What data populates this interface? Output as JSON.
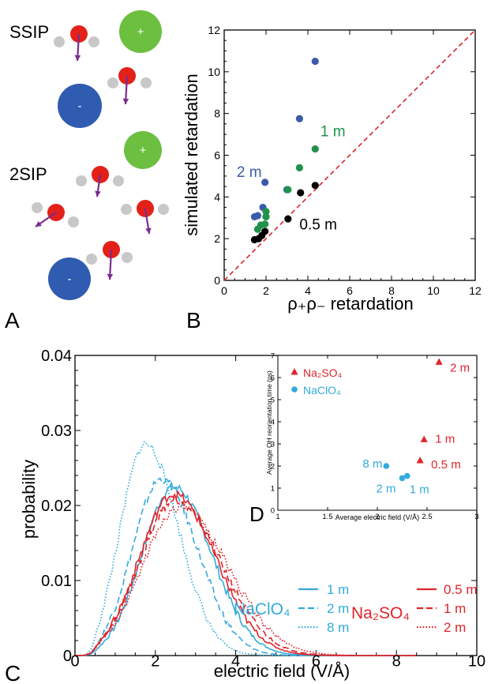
{
  "panels": {
    "A": {
      "letter": "A",
      "labels": {
        "ssip": "SSIP",
        "twosip": "2SIP"
      },
      "cation_sign": "+",
      "anion_sign": "-",
      "colors": {
        "oxygen": "#e32119",
        "hydrogen": "#c8c8c8",
        "cation": "#6cbf3f",
        "anion": "#2f5bb0",
        "dipole": "#7b2b8f",
        "sign": "#ffffff"
      }
    },
    "B": {
      "letter": "B"
    },
    "C": {
      "letter": "C"
    },
    "D": {
      "letter": "D"
    }
  },
  "chart_data": [
    {
      "panel": "B",
      "type": "scatter",
      "xlabel": "ρ₊ρ₋ retardation",
      "ylabel": "simulated retardation",
      "xlim": [
        0,
        12
      ],
      "ylim": [
        0,
        12
      ],
      "xticks": [
        "0",
        "2",
        "4",
        "6",
        "8",
        "10",
        "12"
      ],
      "yticks": [
        "0",
        "2",
        "4",
        "6",
        "8",
        "10",
        "12"
      ],
      "reference_line": {
        "style": "dashed",
        "color": "#d9262b",
        "from": [
          0,
          0
        ],
        "to": [
          12,
          12
        ]
      },
      "series": [
        {
          "name": "2 m",
          "color": "#3b5ba9",
          "x": [
            1.45,
            1.6,
            1.85,
            1.95,
            2.0,
            3.0,
            3.6,
            4.35
          ],
          "y": [
            3.05,
            3.1,
            3.5,
            4.7,
            3.05,
            4.35,
            7.75,
            10.5
          ]
        },
        {
          "name": "1 m",
          "color": "#21924a",
          "x": [
            1.6,
            1.75,
            1.95,
            2.0,
            2.0,
            3.05,
            3.6,
            4.35
          ],
          "y": [
            2.45,
            2.65,
            2.7,
            3.05,
            3.3,
            4.35,
            5.4,
            6.3
          ]
        },
        {
          "name": "0.5 m",
          "color": "#000000",
          "x": [
            1.45,
            1.65,
            1.8,
            1.95,
            3.05,
            3.65,
            4.35
          ],
          "y": [
            1.95,
            2.0,
            2.15,
            2.35,
            2.95,
            4.2,
            4.55
          ]
        }
      ],
      "annotations": [
        {
          "text": "2 m",
          "color": "#3b5ba9",
          "at": [
            0.6,
            4.95
          ]
        },
        {
          "text": "1 m",
          "color": "#21924a",
          "at": [
            4.6,
            6.9
          ]
        },
        {
          "text": "0.5 m",
          "color": "#000000",
          "at": [
            3.6,
            2.45
          ]
        }
      ]
    },
    {
      "panel": "C",
      "type": "line",
      "xlabel": "electric field (V/Å)",
      "ylabel": "probability",
      "xlim": [
        0,
        10
      ],
      "ylim": [
        0,
        0.04
      ],
      "xticks": [
        "0",
        "2",
        "4",
        "6",
        "8",
        "10"
      ],
      "yticks": [
        "0",
        "0.01",
        "0.02",
        "0.03",
        "0.04"
      ],
      "legend": {
        "placement": "bottom-right",
        "groups": [
          {
            "label": "NaClO₄",
            "color": "#33aadc",
            "entries": [
              "1 m",
              "2 m",
              "8 m"
            ]
          },
          {
            "label": "Na₂SO₄",
            "color": "#e0242a",
            "entries": [
              "0.5 m",
              "1 m",
              "2 m"
            ]
          }
        ]
      },
      "series": [
        {
          "name": "NaClO₄ 1 m",
          "color": "#33aadc",
          "dash": "solid",
          "center": 2.45,
          "peak": 0.0225,
          "sigma_left": 0.78,
          "sigma_right": 0.95
        },
        {
          "name": "NaClO₄ 2 m",
          "color": "#33aadc",
          "dash": "dashed",
          "center": 2.15,
          "peak": 0.0235,
          "sigma_left": 0.72,
          "sigma_right": 0.9
        },
        {
          "name": "NaClO₄ 8 m",
          "color": "#33aadc",
          "dash": "dotted",
          "center": 1.75,
          "peak": 0.0282,
          "sigma_left": 0.62,
          "sigma_right": 0.82
        },
        {
          "name": "Na₂SO₄ 0.5 m",
          "color": "#e0242a",
          "dash": "solid",
          "center": 2.45,
          "peak": 0.0215,
          "sigma_left": 0.85,
          "sigma_right": 1.05
        },
        {
          "name": "Na₂SO₄ 1 m",
          "color": "#e0242a",
          "dash": "dashed",
          "center": 2.5,
          "peak": 0.0208,
          "sigma_left": 0.88,
          "sigma_right": 1.12
        },
        {
          "name": "Na₂SO₄ 2 m",
          "color": "#e0242a",
          "dash": "dotted",
          "center": 2.6,
          "peak": 0.0198,
          "sigma_left": 0.92,
          "sigma_right": 1.2
        }
      ]
    },
    {
      "panel": "D",
      "type": "scatter",
      "xlabel": "Average electric field (V/Å)",
      "ylabel": "Average OH reorientation time (ps)",
      "xlim": [
        1,
        3
      ],
      "ylim": [
        0,
        7
      ],
      "xticks": [
        "1",
        "1.5",
        "2",
        "2.5",
        "3"
      ],
      "yticks": [
        "0",
        "1",
        "2",
        "3",
        "4",
        "5",
        "6",
        "7"
      ],
      "legend": {
        "placement": "top-left",
        "entries": [
          {
            "label": "Na₂SO₄",
            "color": "#e0242a",
            "marker": "triangle"
          },
          {
            "label": "NaClO₄",
            "color": "#33aadc",
            "marker": "circle"
          }
        ]
      },
      "series": [
        {
          "name": "Na₂SO₄",
          "color": "#e0242a",
          "marker": "triangle",
          "x": [
            2.43,
            2.47,
            2.62
          ],
          "y": [
            2.25,
            3.2,
            6.7
          ],
          "point_labels": [
            "0.5 m",
            "1 m",
            "2 m"
          ]
        },
        {
          "name": "NaClO₄",
          "color": "#33aadc",
          "marker": "circle",
          "x": [
            2.09,
            2.25,
            2.3
          ],
          "y": [
            2.0,
            1.45,
            1.55
          ],
          "point_labels": [
            "8 m",
            "2 m",
            "1 m"
          ]
        }
      ]
    }
  ]
}
